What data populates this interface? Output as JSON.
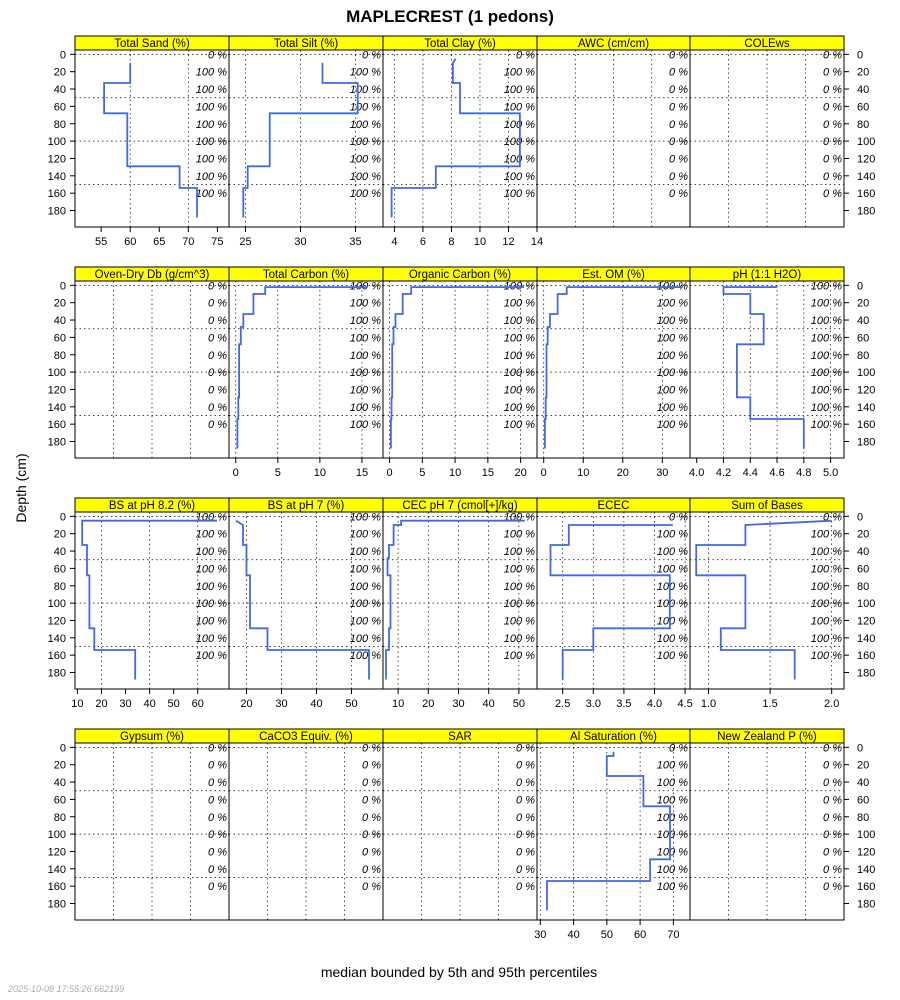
{
  "title": "MAPLECREST (1 pedons)",
  "ylabel": "Depth (cm)",
  "xlabel": "median bounded by 5th and 95th percentiles",
  "timestamp": "2025-10-08 17:55:26.662199",
  "colors": {
    "strip": "#ffff00",
    "line": "#4169e1",
    "grid": "#000000"
  },
  "depth_ticks": [
    0,
    20,
    40,
    60,
    80,
    100,
    120,
    140,
    160,
    180
  ],
  "depth_range": [
    -5,
    199
  ],
  "label_depths": [
    0,
    20,
    40,
    60,
    80,
    100,
    120,
    140,
    160
  ],
  "chart_data": {
    "type": "line",
    "y_variable": "depth_cm",
    "panels": [
      {
        "label": "Total Sand (%)",
        "xlim": [
          50.5,
          77
        ],
        "ticks": [
          55,
          60,
          65,
          70,
          75
        ],
        "x_grid": [
          50,
          60,
          70
        ],
        "pct": [
          "0 %",
          "100 %",
          "100 %",
          "100 %",
          "100 %",
          "100 %",
          "100 %",
          "100 %",
          "100 %"
        ],
        "profile": [
          [
            60,
            10
          ],
          [
            60,
            33
          ],
          [
            55.5,
            33
          ],
          [
            55.5,
            68
          ],
          [
            59.5,
            68
          ],
          [
            59.5,
            129
          ],
          [
            68.5,
            129
          ],
          [
            68.5,
            154
          ],
          [
            71.5,
            154
          ],
          [
            71.5,
            188
          ]
        ]
      },
      {
        "label": "Total Silt (%)",
        "xlim": [
          23.5,
          37.5
        ],
        "ticks": [
          25,
          30,
          35
        ],
        "x_grid": [
          25,
          30,
          35
        ],
        "pct": [
          "0 %",
          "100 %",
          "100 %",
          "100 %",
          "100 %",
          "100 %",
          "100 %",
          "100 %",
          "100 %"
        ],
        "profile": [
          [
            32,
            10
          ],
          [
            32,
            33
          ],
          [
            35.2,
            33
          ],
          [
            35.2,
            68
          ],
          [
            27.2,
            68
          ],
          [
            27.2,
            129
          ],
          [
            25.2,
            129
          ],
          [
            25.2,
            154
          ],
          [
            24.8,
            154
          ],
          [
            24.8,
            188
          ]
        ]
      },
      {
        "label": "Total Clay (%)",
        "xlim": [
          3.2,
          14
        ],
        "ticks": [
          4,
          6,
          8,
          10,
          12,
          14
        ],
        "x_grid": [
          4,
          6,
          8,
          10,
          12
        ],
        "pct": [
          "0 %",
          "100 %",
          "100 %",
          "100 %",
          "100 %",
          "100 %",
          "100 %",
          "100 %",
          "100 %"
        ],
        "profile": [
          [
            8.3,
            5
          ],
          [
            8.1,
            10
          ],
          [
            8.1,
            33
          ],
          [
            8.6,
            33
          ],
          [
            8.6,
            68
          ],
          [
            12.8,
            68
          ],
          [
            12.8,
            129
          ],
          [
            6.9,
            129
          ],
          [
            6.9,
            154
          ],
          [
            3.8,
            154
          ],
          [
            3.8,
            188
          ]
        ]
      },
      {
        "label": "AWC (cm/cm)",
        "xlim": [
          0,
          1
        ],
        "ticks": [],
        "x_grid": [
          0.25,
          0.5,
          0.75
        ],
        "pct": [
          "0 %",
          "0 %",
          "0 %",
          "0 %",
          "0 %",
          "0 %",
          "0 %",
          "0 %",
          "0 %"
        ],
        "profile": []
      },
      {
        "label": "COLEws",
        "xlim": [
          0,
          1
        ],
        "ticks": [],
        "x_grid": [
          0.25,
          0.5,
          0.75
        ],
        "pct": [
          "0 %",
          "0 %",
          "0 %",
          "0 %",
          "0 %",
          "0 %",
          "0 %",
          "0 %",
          "0 %"
        ],
        "profile": []
      },
      {
        "label": "Oven-Dry Db (g/cm^3)",
        "xlim": [
          0,
          1
        ],
        "ticks": [],
        "x_grid": [
          0.25,
          0.5,
          0.75
        ],
        "pct": [
          "0 %",
          "0 %",
          "0 %",
          "0 %",
          "0 %",
          "0 %",
          "0 %",
          "0 %",
          "0 %"
        ],
        "profile": []
      },
      {
        "label": "Total Carbon (%)",
        "xlim": [
          -0.8,
          17.5
        ],
        "ticks": [
          0,
          5,
          10,
          15
        ],
        "x_grid": [
          0,
          5,
          10,
          15
        ],
        "pct": [
          "100 %",
          "100 %",
          "100 %",
          "100 %",
          "100 %",
          "100 %",
          "100 %",
          "100 %",
          "100 %"
        ],
        "profile": [
          [
            15.6,
            2
          ],
          [
            3.5,
            2
          ],
          [
            3.5,
            10
          ],
          [
            2.1,
            10
          ],
          [
            2.1,
            33
          ],
          [
            0.9,
            33
          ],
          [
            0.9,
            48
          ],
          [
            0.6,
            48
          ],
          [
            0.6,
            68
          ],
          [
            0.4,
            68
          ],
          [
            0.4,
            129
          ],
          [
            0.3,
            129
          ],
          [
            0.3,
            154
          ],
          [
            0.2,
            154
          ],
          [
            0.2,
            188
          ]
        ]
      },
      {
        "label": "Organic Carbon (%)",
        "xlim": [
          -1,
          22.5
        ],
        "ticks": [
          0,
          5,
          10,
          15,
          20
        ],
        "x_grid": [
          0,
          5,
          10,
          15,
          20
        ],
        "pct": [
          "100 %",
          "100 %",
          "100 %",
          "100 %",
          "100 %",
          "100 %",
          "100 %",
          "100 %",
          "100 %"
        ],
        "profile": [
          [
            20.5,
            2
          ],
          [
            3.3,
            2
          ],
          [
            3.3,
            10
          ],
          [
            2,
            10
          ],
          [
            2,
            33
          ],
          [
            0.9,
            33
          ],
          [
            0.9,
            48
          ],
          [
            0.6,
            48
          ],
          [
            0.6,
            68
          ],
          [
            0.4,
            68
          ],
          [
            0.4,
            129
          ],
          [
            0.3,
            129
          ],
          [
            0.3,
            154
          ],
          [
            0.2,
            154
          ],
          [
            0.2,
            188
          ]
        ]
      },
      {
        "label": "Est. OM (%)",
        "xlim": [
          -1.7,
          37
        ],
        "ticks": [
          0,
          10,
          20,
          30
        ],
        "x_grid": [
          0,
          10,
          20,
          30
        ],
        "pct": [
          "100 %",
          "100 %",
          "100 %",
          "100 %",
          "100 %",
          "100 %",
          "100 %",
          "100 %",
          "100 %"
        ],
        "profile": [
          [
            35,
            2
          ],
          [
            5.8,
            2
          ],
          [
            5.8,
            10
          ],
          [
            3.5,
            10
          ],
          [
            3.5,
            33
          ],
          [
            1.6,
            33
          ],
          [
            1.6,
            48
          ],
          [
            1,
            48
          ],
          [
            1,
            68
          ],
          [
            0.7,
            68
          ],
          [
            0.7,
            129
          ],
          [
            0.5,
            129
          ],
          [
            0.5,
            154
          ],
          [
            0.3,
            154
          ],
          [
            0.3,
            188
          ]
        ]
      },
      {
        "label": "pH (1:1 H2O)",
        "xlim": [
          3.95,
          5.1
        ],
        "ticks": [
          4.0,
          4.2,
          4.4,
          4.6,
          4.8,
          5.0
        ],
        "x_grid": [
          4.2,
          4.4,
          4.6,
          4.8,
          5.0
        ],
        "pct": [
          "100 %",
          "100 %",
          "100 %",
          "100 %",
          "100 %",
          "100 %",
          "100 %",
          "100 %",
          "100 %"
        ],
        "profile": [
          [
            4.6,
            2
          ],
          [
            4.2,
            2
          ],
          [
            4.2,
            10
          ],
          [
            4.4,
            10
          ],
          [
            4.4,
            33
          ],
          [
            4.5,
            33
          ],
          [
            4.5,
            68
          ],
          [
            4.3,
            68
          ],
          [
            4.3,
            129
          ],
          [
            4.4,
            129
          ],
          [
            4.4,
            154
          ],
          [
            4.8,
            154
          ],
          [
            4.8,
            188
          ]
        ]
      },
      {
        "label": "BS at pH 8.2 (%)",
        "xlim": [
          9,
          73
        ],
        "ticks": [
          10,
          20,
          30,
          40,
          50,
          60
        ],
        "x_grid": [
          20,
          40,
          60
        ],
        "pct": [
          "100 %",
          "100 %",
          "100 %",
          "100 %",
          "100 %",
          "100 %",
          "100 %",
          "100 %",
          "100 %"
        ],
        "profile": [
          [
            68,
            5
          ],
          [
            12,
            5
          ],
          [
            12,
            33
          ],
          [
            14,
            33
          ],
          [
            14,
            68
          ],
          [
            15,
            68
          ],
          [
            15,
            129
          ],
          [
            17,
            129
          ],
          [
            17,
            154
          ],
          [
            34,
            154
          ],
          [
            34,
            188
          ]
        ]
      },
      {
        "label": "BS at pH 7 (%)",
        "xlim": [
          15,
          59
        ],
        "ticks": [
          20,
          30,
          40,
          50
        ],
        "x_grid": [
          20,
          30,
          40,
          50
        ],
        "pct": [
          "100 %",
          "100 %",
          "100 %",
          "100 %",
          "100 %",
          "100 %",
          "100 %",
          "100 %",
          "100 %"
        ],
        "profile": [
          [
            17,
            5
          ],
          [
            19,
            10
          ],
          [
            19,
            33
          ],
          [
            20,
            33
          ],
          [
            20,
            68
          ],
          [
            21,
            68
          ],
          [
            21,
            129
          ],
          [
            26,
            129
          ],
          [
            26,
            154
          ],
          [
            55,
            154
          ],
          [
            55,
            188
          ]
        ]
      },
      {
        "label": "CEC pH 7 (cmol[+]/kg)",
        "xlim": [
          5,
          56
        ],
        "ticks": [
          10,
          20,
          30,
          40,
          50
        ],
        "x_grid": [
          10,
          20,
          30,
          40,
          50
        ],
        "pct": [
          "100 %",
          "100 %",
          "100 %",
          "100 %",
          "100 %",
          "100 %",
          "100 %",
          "100 %",
          "100 %"
        ],
        "profile": [
          [
            52,
            5
          ],
          [
            11,
            5
          ],
          [
            11,
            10
          ],
          [
            8.5,
            10
          ],
          [
            8.5,
            33
          ],
          [
            7,
            33
          ],
          [
            7,
            48
          ],
          [
            6.5,
            48
          ],
          [
            6.5,
            68
          ],
          [
            7.5,
            68
          ],
          [
            7.5,
            129
          ],
          [
            7,
            129
          ],
          [
            7,
            154
          ],
          [
            6,
            154
          ],
          [
            6,
            188
          ]
        ]
      },
      {
        "label": "ECEC",
        "xlim": [
          2.08,
          4.58
        ],
        "ticks": [
          2.5,
          3.0,
          3.5,
          4.0,
          4.5
        ],
        "x_grid": [
          2.5,
          3.0,
          3.5,
          4.0,
          4.5
        ],
        "pct": [
          "0 %",
          "100 %",
          "100 %",
          "100 %",
          "100 %",
          "100 %",
          "100 %",
          "100 %",
          "100 %"
        ],
        "profile": [
          [
            4.3,
            10
          ],
          [
            2.6,
            10
          ],
          [
            2.6,
            33
          ],
          [
            2.3,
            33
          ],
          [
            2.3,
            68
          ],
          [
            4.25,
            68
          ],
          [
            4.25,
            129
          ],
          [
            3.0,
            129
          ],
          [
            3.0,
            154
          ],
          [
            2.5,
            154
          ],
          [
            2.5,
            188
          ]
        ]
      },
      {
        "label": "Sum of Bases",
        "xlim": [
          0.85,
          2.1
        ],
        "ticks": [
          1.0,
          1.5,
          2.0
        ],
        "x_grid": [
          1.0,
          1.5,
          2.0
        ],
        "pct": [
          "0 %",
          "100 %",
          "100 %",
          "100 %",
          "100 %",
          "100 %",
          "100 %",
          "100 %",
          "100 %"
        ],
        "profile": [
          [
            2.0,
            5
          ],
          [
            1.3,
            10
          ],
          [
            1.3,
            33
          ],
          [
            0.9,
            33
          ],
          [
            0.9,
            68
          ],
          [
            1.3,
            68
          ],
          [
            1.3,
            129
          ],
          [
            1.1,
            129
          ],
          [
            1.1,
            154
          ],
          [
            1.7,
            154
          ],
          [
            1.7,
            188
          ]
        ]
      },
      {
        "label": "Gypsum (%)",
        "xlim": [
          0,
          1
        ],
        "ticks": [],
        "x_grid": [
          0.25,
          0.5,
          0.75
        ],
        "pct": [
          "0 %",
          "0 %",
          "0 %",
          "0 %",
          "0 %",
          "0 %",
          "0 %",
          "0 %",
          "0 %"
        ],
        "profile": []
      },
      {
        "label": "CaCO3 Equiv. (%)",
        "xlim": [
          0,
          1
        ],
        "ticks": [],
        "x_grid": [
          0.25,
          0.5,
          0.75
        ],
        "pct": [
          "0 %",
          "0 %",
          "0 %",
          "0 %",
          "0 %",
          "0 %",
          "0 %",
          "0 %",
          "0 %"
        ],
        "profile": []
      },
      {
        "label": "SAR",
        "xlim": [
          0,
          1
        ],
        "ticks": [],
        "x_grid": [
          0.25,
          0.5,
          0.75
        ],
        "pct": [
          "0 %",
          "0 %",
          "0 %",
          "0 %",
          "0 %",
          "0 %",
          "0 %",
          "0 %",
          "0 %"
        ],
        "profile": []
      },
      {
        "label": "Al Saturation (%)",
        "xlim": [
          29,
          75
        ],
        "ticks": [
          30,
          40,
          50,
          60,
          70
        ],
        "x_grid": [
          30,
          40,
          50,
          60,
          70
        ],
        "pct": [
          "0 %",
          "100 %",
          "100 %",
          "100 %",
          "100 %",
          "100 %",
          "100 %",
          "100 %",
          "100 %"
        ],
        "profile": [
          [
            52,
            5
          ],
          [
            52,
            10
          ],
          [
            50,
            10
          ],
          [
            50,
            33
          ],
          [
            61,
            33
          ],
          [
            61,
            68
          ],
          [
            69,
            68
          ],
          [
            69,
            129
          ],
          [
            63,
            129
          ],
          [
            63,
            154
          ],
          [
            32,
            154
          ],
          [
            32,
            188
          ]
        ]
      },
      {
        "label": "New Zealand P (%)",
        "xlim": [
          0,
          1
        ],
        "ticks": [],
        "x_grid": [
          0.25,
          0.5,
          0.75
        ],
        "pct": [
          "0 %",
          "0 %",
          "0 %",
          "0 %",
          "0 %",
          "0 %",
          "0 %",
          "0 %",
          "0 %"
        ],
        "profile": []
      }
    ]
  }
}
